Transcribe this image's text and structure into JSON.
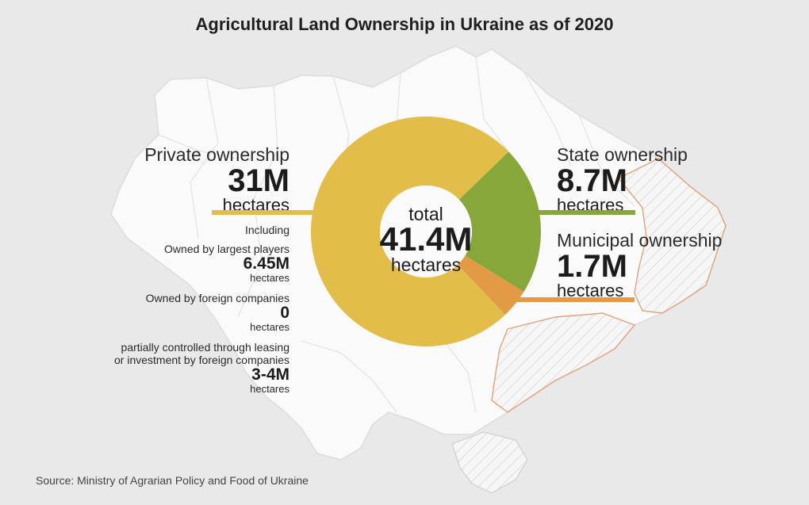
{
  "title": "Agricultural Land Ownership in Ukraine as of 2020",
  "source": "Source: Ministry of Agrarian Policy and Food of Ukraine",
  "colors": {
    "private": "#e3bd4a",
    "state": "#87a73a",
    "municipal": "#e39a45",
    "background": "#e9e9e9",
    "map_fill": "#fafafa"
  },
  "chart_data": {
    "type": "pie",
    "title": "Agricultural Land Ownership in Ukraine as of 2020",
    "center": {
      "line1": "total",
      "value": "41.4M",
      "unit": "hectares"
    },
    "slices": [
      {
        "key": "private",
        "name": "Private ownership",
        "value": 31,
        "display": "31M",
        "unit": "hectares",
        "color": "#e3bd4a"
      },
      {
        "key": "state",
        "name": "State ownership",
        "value": 8.7,
        "display": "8.7M",
        "unit": "hectares",
        "color": "#87a73a"
      },
      {
        "key": "municipal",
        "name": "Municipal ownership",
        "value": 1.7,
        "display": "1.7M",
        "unit": "hectares",
        "color": "#e39a45"
      }
    ],
    "private_breakdown": {
      "heading": "Including",
      "items": [
        {
          "label": "Owned by largest players",
          "value": "6.45M",
          "unit": "hectares"
        },
        {
          "label": "Owned by foreign companies",
          "value": "0",
          "unit": "hectares"
        },
        {
          "label_line1": "partially controlled through leasing",
          "label_line2": "or investment by foreign companies",
          "value": "3-4M",
          "unit": "hectares"
        }
      ]
    }
  }
}
